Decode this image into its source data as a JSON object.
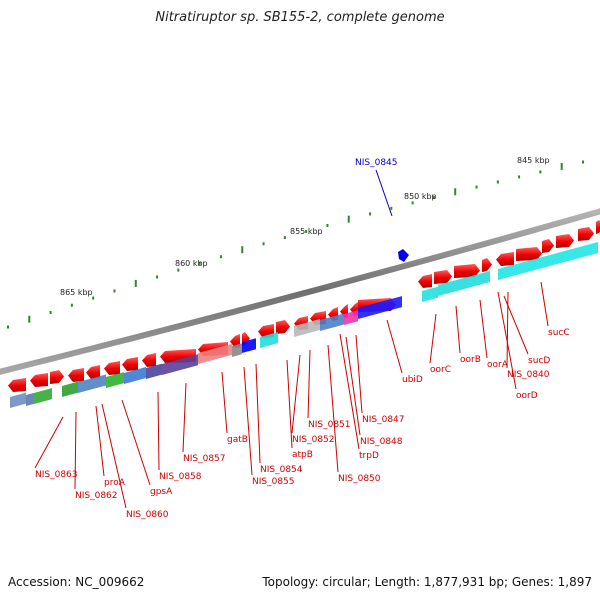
{
  "title": "Nitratiruptor sp. SB155-2, complete genome",
  "footer": {
    "accession": "Accession: NC_009662",
    "topology": "Topology: circular; Length: 1,877,931 bp; Genes: 1,897"
  },
  "colors": {
    "backbone": "#808080",
    "cds": "#ee0000",
    "tick": "#2a8a2a",
    "label_red": "#cc0000",
    "label_blue": "#0000cc",
    "highlight_gene": "#0000ff"
  },
  "scale_labels": [
    "845 kbp",
    "850 kbp",
    "855 kbp",
    "860 kbp",
    "865 kbp"
  ],
  "highlighted_gene": "NIS_0845",
  "gene_labels": [
    "ubiD",
    "oorC",
    "oorB",
    "oorA",
    "sucD",
    "NIS_0840",
    "oorD",
    "sucC",
    "NIS_0847",
    "NIS_0848",
    "trpD",
    "NIS_0850",
    "NIS_0851",
    "NIS_0852",
    "atpB",
    "NIS_0854",
    "NIS_0855",
    "gatB",
    "NIS_0857",
    "NIS_0858",
    "gpsA",
    "NIS_0860",
    "proA",
    "NIS_0862",
    "NIS_0863"
  ]
}
